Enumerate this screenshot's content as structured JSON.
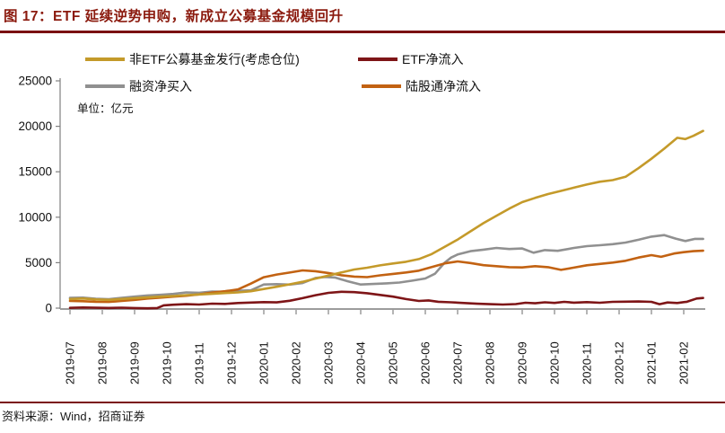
{
  "header": {
    "title": "图 17：ETF 延续逆势申购，新成立公募基金规模回升"
  },
  "footer": {
    "source_text": "资料来源：Wind，招商证券"
  },
  "colors": {
    "title_red": "#8B1A0E",
    "rule_red": "#7A1012",
    "axis_gray": "#9C9C9C",
    "text_black": "#111111"
  },
  "chart_data": {
    "type": "line",
    "unit_label": "单位：亿元",
    "ylabel": "",
    "xlabel": "",
    "ylim": [
      0,
      25000
    ],
    "y_ticks": [
      0,
      5000,
      10000,
      15000,
      20000,
      25000
    ],
    "x_labels": [
      "2019-07",
      "2019-08",
      "2019-09",
      "2019-10",
      "2019-11",
      "2019-12",
      "2020-01",
      "2020-02",
      "2020-03",
      "2020-04",
      "2020-05",
      "2020-06",
      "2020-07",
      "2020-08",
      "2020-09",
      "2020-10",
      "2020-11",
      "2020-12",
      "2021-01",
      "2021-02"
    ],
    "grid": false,
    "legend_position": "top",
    "series": [
      {
        "name": "非ETF公募基金发行(考虑仓位)",
        "color": "#C49A2A",
        "points": [
          [
            0,
            1000
          ],
          [
            0.4,
            1060
          ],
          [
            0.8,
            960
          ],
          [
            1.2,
            910
          ],
          [
            1.6,
            1010
          ],
          [
            2,
            1100
          ],
          [
            2.4,
            1180
          ],
          [
            2.8,
            1260
          ],
          [
            3.2,
            1330
          ],
          [
            3.6,
            1430
          ],
          [
            4,
            1500
          ],
          [
            4.4,
            1570
          ],
          [
            4.8,
            1660
          ],
          [
            5.2,
            1730
          ],
          [
            5.6,
            1860
          ],
          [
            6,
            2100
          ],
          [
            6.4,
            2350
          ],
          [
            6.8,
            2620
          ],
          [
            7.2,
            2900
          ],
          [
            7.6,
            3250
          ],
          [
            8,
            3580
          ],
          [
            8.4,
            3920
          ],
          [
            8.8,
            4250
          ],
          [
            9.2,
            4450
          ],
          [
            9.6,
            4700
          ],
          [
            10,
            4910
          ],
          [
            10.4,
            5100
          ],
          [
            10.8,
            5400
          ],
          [
            11.2,
            5950
          ],
          [
            11.6,
            6750
          ],
          [
            12,
            7540
          ],
          [
            12.4,
            8450
          ],
          [
            12.8,
            9350
          ],
          [
            13.2,
            10150
          ],
          [
            13.6,
            10950
          ],
          [
            14,
            11660
          ],
          [
            14.4,
            12120
          ],
          [
            14.8,
            12550
          ],
          [
            15.2,
            12900
          ],
          [
            15.6,
            13250
          ],
          [
            16,
            13600
          ],
          [
            16.4,
            13900
          ],
          [
            16.8,
            14080
          ],
          [
            17.2,
            14450
          ],
          [
            17.6,
            15400
          ],
          [
            18,
            16430
          ],
          [
            18.4,
            17550
          ],
          [
            18.8,
            18740
          ],
          [
            19.05,
            18600
          ],
          [
            19.3,
            18950
          ],
          [
            19.6,
            19500
          ]
        ]
      },
      {
        "name": "ETF净流入",
        "color": "#7E1517",
        "points": [
          [
            0,
            30
          ],
          [
            0.4,
            70
          ],
          [
            0.8,
            40
          ],
          [
            1.2,
            20
          ],
          [
            1.6,
            50
          ],
          [
            2,
            10
          ],
          [
            2.4,
            -20
          ],
          [
            2.7,
            10
          ],
          [
            2.9,
            310
          ],
          [
            3.2,
            380
          ],
          [
            3.6,
            430
          ],
          [
            4,
            400
          ],
          [
            4.4,
            490
          ],
          [
            4.8,
            460
          ],
          [
            5.2,
            560
          ],
          [
            5.6,
            610
          ],
          [
            6,
            660
          ],
          [
            6.4,
            630
          ],
          [
            6.8,
            810
          ],
          [
            7.2,
            1100
          ],
          [
            7.6,
            1420
          ],
          [
            8,
            1680
          ],
          [
            8.4,
            1800
          ],
          [
            8.8,
            1760
          ],
          [
            9.2,
            1640
          ],
          [
            9.6,
            1450
          ],
          [
            10,
            1260
          ],
          [
            10.4,
            1000
          ],
          [
            10.8,
            790
          ],
          [
            11.1,
            850
          ],
          [
            11.4,
            700
          ],
          [
            11.8,
            640
          ],
          [
            12.2,
            560
          ],
          [
            12.6,
            480
          ],
          [
            13,
            430
          ],
          [
            13.4,
            400
          ],
          [
            13.8,
            440
          ],
          [
            14.1,
            590
          ],
          [
            14.4,
            530
          ],
          [
            14.7,
            640
          ],
          [
            15,
            570
          ],
          [
            15.3,
            690
          ],
          [
            15.6,
            600
          ],
          [
            16,
            660
          ],
          [
            16.4,
            590
          ],
          [
            16.8,
            690
          ],
          [
            17.2,
            710
          ],
          [
            17.6,
            730
          ],
          [
            18,
            690
          ],
          [
            18.25,
            430
          ],
          [
            18.5,
            620
          ],
          [
            18.8,
            560
          ],
          [
            19.1,
            700
          ],
          [
            19.4,
            1060
          ],
          [
            19.6,
            1120
          ]
        ]
      },
      {
        "name": "融资净买入",
        "color": "#909090",
        "points": [
          [
            0,
            1130
          ],
          [
            0.4,
            1160
          ],
          [
            0.8,
            1030
          ],
          [
            1.2,
            990
          ],
          [
            1.6,
            1130
          ],
          [
            2,
            1260
          ],
          [
            2.4,
            1390
          ],
          [
            2.8,
            1460
          ],
          [
            3.2,
            1560
          ],
          [
            3.6,
            1730
          ],
          [
            4,
            1690
          ],
          [
            4.4,
            1830
          ],
          [
            4.8,
            1800
          ],
          [
            5.2,
            1910
          ],
          [
            5.6,
            1960
          ],
          [
            6,
            2600
          ],
          [
            6.4,
            2640
          ],
          [
            6.8,
            2590
          ],
          [
            7.2,
            2760
          ],
          [
            7.6,
            3320
          ],
          [
            7.9,
            3430
          ],
          [
            8.2,
            3370
          ],
          [
            8.6,
            2950
          ],
          [
            9,
            2600
          ],
          [
            9.4,
            2660
          ],
          [
            9.8,
            2730
          ],
          [
            10.2,
            2820
          ],
          [
            10.6,
            3020
          ],
          [
            11,
            3260
          ],
          [
            11.3,
            3780
          ],
          [
            11.6,
            5000
          ],
          [
            11.8,
            5560
          ],
          [
            12,
            5900
          ],
          [
            12.4,
            6260
          ],
          [
            12.8,
            6430
          ],
          [
            13.2,
            6620
          ],
          [
            13.6,
            6500
          ],
          [
            14,
            6560
          ],
          [
            14.35,
            6100
          ],
          [
            14.7,
            6380
          ],
          [
            15.1,
            6300
          ],
          [
            15.6,
            6620
          ],
          [
            16,
            6820
          ],
          [
            16.4,
            6920
          ],
          [
            16.8,
            7040
          ],
          [
            17.2,
            7210
          ],
          [
            17.6,
            7520
          ],
          [
            18,
            7870
          ],
          [
            18.4,
            8030
          ],
          [
            18.75,
            7650
          ],
          [
            19.05,
            7380
          ],
          [
            19.35,
            7620
          ],
          [
            19.6,
            7620
          ]
        ]
      },
      {
        "name": "陆股通净流入",
        "color": "#C26212",
        "points": [
          [
            0,
            790
          ],
          [
            0.4,
            760
          ],
          [
            0.8,
            700
          ],
          [
            1.2,
            680
          ],
          [
            1.6,
            790
          ],
          [
            2,
            910
          ],
          [
            2.4,
            1060
          ],
          [
            2.8,
            1160
          ],
          [
            3.2,
            1260
          ],
          [
            3.6,
            1360
          ],
          [
            4,
            1510
          ],
          [
            4.4,
            1710
          ],
          [
            4.8,
            1860
          ],
          [
            5.2,
            2060
          ],
          [
            5.6,
            2700
          ],
          [
            6,
            3400
          ],
          [
            6.4,
            3700
          ],
          [
            6.8,
            3910
          ],
          [
            7.2,
            4150
          ],
          [
            7.6,
            4060
          ],
          [
            8,
            3860
          ],
          [
            8.4,
            3620
          ],
          [
            8.8,
            3470
          ],
          [
            9.2,
            3410
          ],
          [
            9.6,
            3610
          ],
          [
            10,
            3760
          ],
          [
            10.4,
            3920
          ],
          [
            10.8,
            4120
          ],
          [
            11.2,
            4520
          ],
          [
            11.6,
            4920
          ],
          [
            12,
            5140
          ],
          [
            12.4,
            4960
          ],
          [
            12.8,
            4720
          ],
          [
            13.2,
            4610
          ],
          [
            13.6,
            4510
          ],
          [
            14,
            4480
          ],
          [
            14.4,
            4610
          ],
          [
            14.8,
            4510
          ],
          [
            15.2,
            4210
          ],
          [
            15.6,
            4460
          ],
          [
            16,
            4710
          ],
          [
            16.4,
            4860
          ],
          [
            16.8,
            5010
          ],
          [
            17.2,
            5210
          ],
          [
            17.6,
            5560
          ],
          [
            18,
            5830
          ],
          [
            18.3,
            5640
          ],
          [
            18.7,
            6010
          ],
          [
            19,
            6160
          ],
          [
            19.3,
            6260
          ],
          [
            19.6,
            6310
          ]
        ]
      }
    ]
  }
}
